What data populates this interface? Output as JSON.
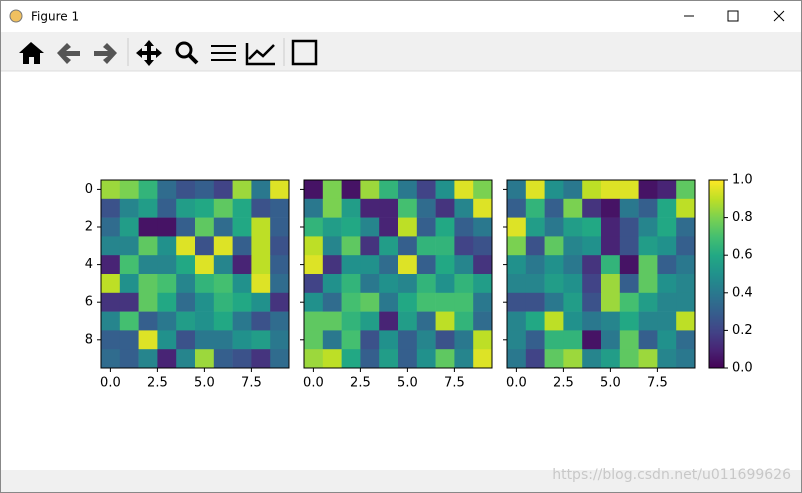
{
  "window": {
    "title": "Figure 1"
  },
  "watermark": "https://blog.csdn.net/u011699626",
  "colorbar": {
    "colormap": "viridis",
    "lim": [
      0,
      1
    ],
    "ticks": [
      {
        "value": 0,
        "label": "0.0"
      },
      {
        "value": 0.2,
        "label": "0.2"
      },
      {
        "value": 0.4,
        "label": "0.4"
      },
      {
        "value": 0.6,
        "label": "0.6"
      },
      {
        "value": 0.8,
        "label": "0.8"
      },
      {
        "value": 1,
        "label": "1.0"
      }
    ]
  },
  "chart_data": [
    {
      "type": "heatmap",
      "xlim": [
        -0.5,
        9.5
      ],
      "ylim": [
        9.5,
        -0.5
      ],
      "xticks": [
        {
          "value": 0,
          "label": "0.0"
        },
        {
          "value": 2.5,
          "label": "2.5"
        },
        {
          "value": 5,
          "label": "5.0"
        },
        {
          "value": 7.5,
          "label": "7.5"
        }
      ],
      "yticks": [
        0,
        2,
        4,
        6,
        8
      ],
      "yticklabels": true,
      "values": [
        [
          0.85,
          0.8,
          0.65,
          0.35,
          0.25,
          0.3,
          0.2,
          0.85,
          0.4,
          0.95
        ],
        [
          0.25,
          0.45,
          0.55,
          0.3,
          0.55,
          0.6,
          0.75,
          0.6,
          0.25,
          0.3
        ],
        [
          0.35,
          0.55,
          0.05,
          0.05,
          0.3,
          0.75,
          0.35,
          0.6,
          0.9,
          0.3
        ],
        [
          0.45,
          0.45,
          0.75,
          0.5,
          0.95,
          0.25,
          0.95,
          0.3,
          0.9,
          0.25
        ],
        [
          0.1,
          0.7,
          0.45,
          0.45,
          0.6,
          0.95,
          0.45,
          0.1,
          0.9,
          0.3
        ],
        [
          0.9,
          0.5,
          0.75,
          0.7,
          0.45,
          0.65,
          0.7,
          0.5,
          0.95,
          0.35
        ],
        [
          0.15,
          0.15,
          0.75,
          0.6,
          0.35,
          0.5,
          0.65,
          0.6,
          0.5,
          0.15
        ],
        [
          0.45,
          0.7,
          0.3,
          0.4,
          0.55,
          0.5,
          0.6,
          0.4,
          0.25,
          0.35
        ],
        [
          0.3,
          0.3,
          0.95,
          0.5,
          0.25,
          0.4,
          0.4,
          0.5,
          0.55,
          0.4
        ],
        [
          0.35,
          0.3,
          0.45,
          0.1,
          0.45,
          0.85,
          0.3,
          0.25,
          0.15,
          0.35
        ]
      ]
    },
    {
      "type": "heatmap",
      "xlim": [
        -0.5,
        9.5
      ],
      "ylim": [
        9.5,
        -0.5
      ],
      "xticks": [
        {
          "value": 0,
          "label": "0.0"
        },
        {
          "value": 2.5,
          "label": "2.5"
        },
        {
          "value": 5,
          "label": "5.0"
        },
        {
          "value": 7.5,
          "label": "7.5"
        }
      ],
      "yticks": [
        0,
        2,
        4,
        6,
        8
      ],
      "yticklabels": false,
      "values": [
        [
          0.05,
          0.8,
          0.05,
          0.85,
          0.65,
          0.4,
          0.2,
          0.5,
          0.95,
          0.8
        ],
        [
          0.4,
          0.8,
          0.55,
          0.1,
          0.1,
          0.7,
          0.35,
          0.15,
          0.45,
          0.95
        ],
        [
          0.65,
          0.55,
          0.6,
          0.45,
          0.1,
          0.9,
          0.3,
          0.6,
          0.3,
          0.4
        ],
        [
          0.9,
          0.45,
          0.75,
          0.15,
          0.55,
          0.3,
          0.65,
          0.65,
          0.2,
          0.25
        ],
        [
          0.95,
          0.15,
          0.5,
          0.5,
          0.35,
          0.95,
          0.3,
          0.6,
          0.45,
          0.15
        ],
        [
          0.2,
          0.5,
          0.65,
          0.4,
          0.5,
          0.45,
          0.65,
          0.5,
          0.65,
          0.55
        ],
        [
          0.5,
          0.35,
          0.7,
          0.75,
          0.4,
          0.6,
          0.7,
          0.7,
          0.7,
          0.4
        ],
        [
          0.75,
          0.75,
          0.65,
          0.55,
          0.1,
          0.55,
          0.35,
          0.9,
          0.65,
          0.35
        ],
        [
          0.75,
          0.4,
          0.7,
          0.25,
          0.5,
          0.3,
          0.45,
          0.25,
          0.4,
          0.9
        ],
        [
          0.85,
          0.9,
          0.6,
          0.3,
          0.55,
          0.3,
          0.5,
          0.75,
          0.45,
          0.95
        ]
      ]
    },
    {
      "type": "heatmap",
      "xlim": [
        -0.5,
        9.5
      ],
      "ylim": [
        9.5,
        -0.5
      ],
      "xticks": [
        {
          "value": 0,
          "label": "0.0"
        },
        {
          "value": 2.5,
          "label": "2.5"
        },
        {
          "value": 5,
          "label": "5.0"
        },
        {
          "value": 7.5,
          "label": "7.5"
        }
      ],
      "yticks": [
        0,
        2,
        4,
        6,
        8
      ],
      "yticklabels": false,
      "values": [
        [
          0.4,
          0.95,
          0.5,
          0.4,
          0.9,
          0.95,
          0.95,
          0.05,
          0.1,
          0.75
        ],
        [
          0.3,
          0.65,
          0.3,
          0.8,
          0.15,
          0.05,
          0.4,
          0.3,
          0.6,
          0.9
        ],
        [
          0.95,
          0.55,
          0.4,
          0.55,
          0.6,
          0.1,
          0.25,
          0.45,
          0.6,
          0.35
        ],
        [
          0.8,
          0.25,
          0.75,
          0.45,
          0.5,
          0.1,
          0.25,
          0.55,
          0.5,
          0.3
        ],
        [
          0.5,
          0.4,
          0.5,
          0.4,
          0.15,
          0.65,
          0.05,
          0.75,
          0.3,
          0.4
        ],
        [
          0.45,
          0.45,
          0.55,
          0.5,
          0.2,
          0.85,
          0.3,
          0.75,
          0.5,
          0.45
        ],
        [
          0.25,
          0.25,
          0.4,
          0.55,
          0.25,
          0.85,
          0.7,
          0.55,
          0.45,
          0.45
        ],
        [
          0.45,
          0.6,
          0.9,
          0.5,
          0.4,
          0.45,
          0.6,
          0.45,
          0.45,
          0.9
        ],
        [
          0.45,
          0.3,
          0.65,
          0.65,
          0.05,
          0.4,
          0.75,
          0.3,
          0.5,
          0.35
        ],
        [
          0.4,
          0.2,
          0.75,
          0.85,
          0.45,
          0.55,
          0.75,
          0.85,
          0.45,
          0.4
        ]
      ]
    }
  ]
}
